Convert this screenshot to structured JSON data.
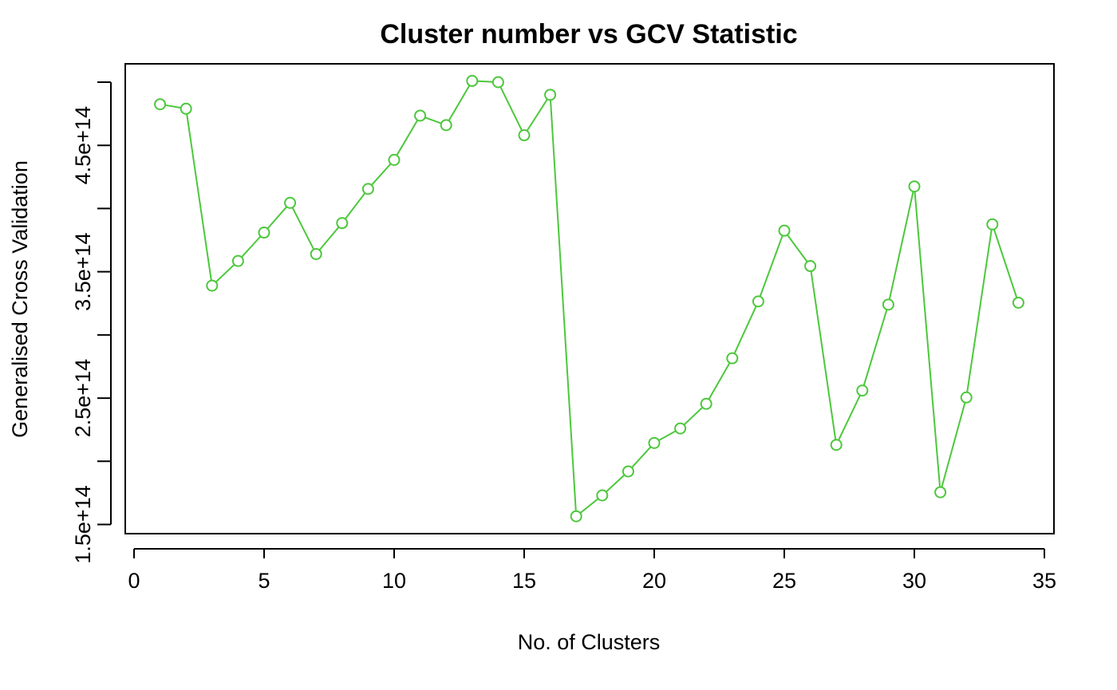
{
  "chart_data": {
    "type": "line",
    "title": "Cluster number vs GCV Statistic",
    "xlabel": "No. of Clusters",
    "ylabel": "Generalised Cross Validation",
    "xlim": [
      0,
      35
    ],
    "ylim": [
      150000000000000.0,
      550000000000000.0
    ],
    "x_ticks": [
      0,
      5,
      10,
      15,
      20,
      25,
      30,
      35
    ],
    "x_tick_labels": [
      "0",
      "5",
      "10",
      "15",
      "20",
      "25",
      "30",
      "35"
    ],
    "y_ticks": [
      150000000000000.0,
      200000000000000.0,
      250000000000000.0,
      300000000000000.0,
      350000000000000.0,
      400000000000000.0,
      450000000000000.0,
      500000000000000.0
    ],
    "y_tick_labels": [
      "1.5e+14",
      "",
      "2.5e+14",
      "",
      "3.5e+14",
      "",
      "4.5e+14",
      ""
    ],
    "grid": false,
    "legend": "none",
    "series": [
      {
        "color": "#4cc83c",
        "marker": "open-circle",
        "x": [
          1,
          2,
          3,
          4,
          5,
          6,
          7,
          8,
          9,
          10,
          11,
          12,
          13,
          14,
          15,
          16,
          17,
          18,
          19,
          20,
          21,
          22,
          23,
          24,
          25,
          26,
          27,
          28,
          29,
          30,
          31,
          32,
          33,
          34
        ],
        "values": [
          482500000000000.0,
          479000000000000.0,
          339000000000000.0,
          358500000000000.0,
          381000000000000.0,
          404500000000000.0,
          364000000000000.0,
          388500000000000.0,
          415500000000000.0,
          438500000000000.0,
          473500000000000.0,
          466000000000000.0,
          501000000000000.0,
          500000000000000.0,
          458000000000000.0,
          490000000000000.0,
          156500000000000.0,
          173000000000000.0,
          192000000000000.0,
          214500000000000.0,
          226000000000000.0,
          245500000000000.0,
          281500000000000.0,
          326500000000000.0,
          382500000000000.0,
          354500000000000.0,
          213000000000000.0,
          256000000000000.0,
          324000000000000.0,
          417500000000000.0,
          175500000000000.0,
          250500000000000.0,
          387500000000000.0,
          325500000000000.0
        ]
      }
    ]
  }
}
